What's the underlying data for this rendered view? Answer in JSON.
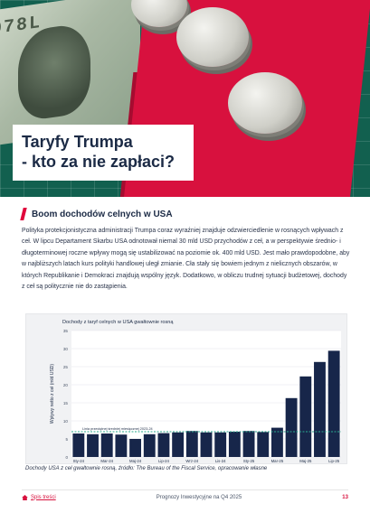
{
  "title": {
    "line1": "Taryfy Trumpa",
    "line2": "- kto za nie zapłaci?"
  },
  "hero": {
    "bill_text": "078L"
  },
  "section": {
    "heading": "Boom dochodów celnych w USA"
  },
  "body": "Polityka protekcjonistyczna administracji Trumpa coraz wyraźniej znajduje odzwierciedlenie w rosnących wpływach z ceł. W lipcu Departament Skarbu USA odnotował niemal 30 mld USD przychodów z ceł, a w perspektywie średnio- i długoterminowej roczne wpływy mogą się ustabilizować na poziomie ok. 400 mld USD. Jest mało prawdopodobne, aby w najbliższych latach kurs polityki handlowej uległ zmianie. Cła stały się bowiem jednym z nielicznych obszarów, w których Republikanie i Demokraci znajdują wspólny język. Dodatkowo, w obliczu trudnej sytuacji budżetowej, dochody z ceł są politycznie nie do zastąpienia.",
  "chart_data": {
    "type": "bar",
    "title": "Dochody z taryf celnych w USA gwałtownie rosną",
    "ylabel": "Wpływy netto z ceł (mld USD)",
    "xlabel": "",
    "ylim": [
      0,
      35
    ],
    "yticks": [
      0,
      5,
      10,
      15,
      20,
      25,
      30,
      35
    ],
    "categories": [
      "Sty-24",
      "Lut-24",
      "Mar-24",
      "Kwi-24",
      "Maj-24",
      "Cze-24",
      "Lip-24",
      "Sie-24",
      "Wrz-24",
      "Paź-24",
      "Lis-24",
      "Gru-24",
      "Sty-25",
      "Lut-25",
      "Mar-25",
      "Kwi-25",
      "Maj-25",
      "Cze-25",
      "Lip-25"
    ],
    "xtick_labels": [
      "Sty-24",
      "",
      "Mar-24",
      "",
      "Maj-24",
      "",
      "Lip-24",
      "",
      "Wrz-24",
      "",
      "Lis-24",
      "",
      "Sty-25",
      "",
      "Mar-25",
      "",
      "Maj-25",
      "",
      "Lip-25"
    ],
    "values": [
      6.5,
      6.3,
      6.5,
      6.2,
      5.0,
      6.3,
      6.6,
      6.8,
      7.2,
      6.8,
      6.8,
      7.0,
      7.2,
      6.9,
      8.1,
      16.3,
      22.3,
      26.3,
      29.4
    ],
    "reference_line": {
      "value": 7.0,
      "label": "Linia przeciętnej średniej miesięcznej 2023-24"
    },
    "grid": true,
    "colors": {
      "bar": "#17264a",
      "reference": "#2aa98e"
    }
  },
  "caption": "Dochody USA z ceł gwałtownie rosną, źródło: The Bureau of the Fiscal Service, opracowanie własne",
  "footer": {
    "toc": "Spis treści",
    "center": "Prognozy Inwestycyjne na Q4 2025",
    "page": "13"
  }
}
